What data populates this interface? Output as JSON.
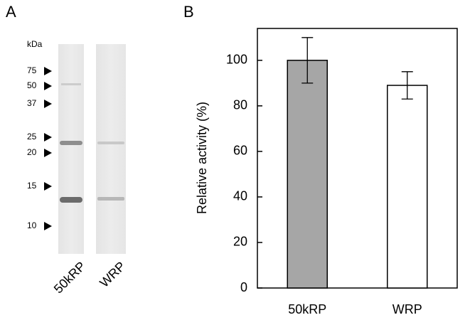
{
  "panel_a": {
    "label": "A",
    "unit": "kDa",
    "markers": [
      75,
      50,
      37,
      25,
      20,
      15,
      10
    ],
    "lanes": [
      "50kRP",
      "WRP"
    ]
  },
  "chart_data": {
    "type": "bar",
    "panel_label": "B",
    "y_label": "Relative activity (%)",
    "categories": [
      "50kRP",
      "WRP"
    ],
    "values": [
      100,
      89
    ],
    "errors": [
      10,
      6
    ],
    "colors": [
      "#a6a6a6",
      "#ffffff"
    ],
    "ylim": [
      0,
      114
    ],
    "yticks": [
      0,
      20,
      40,
      60,
      80,
      100
    ]
  }
}
